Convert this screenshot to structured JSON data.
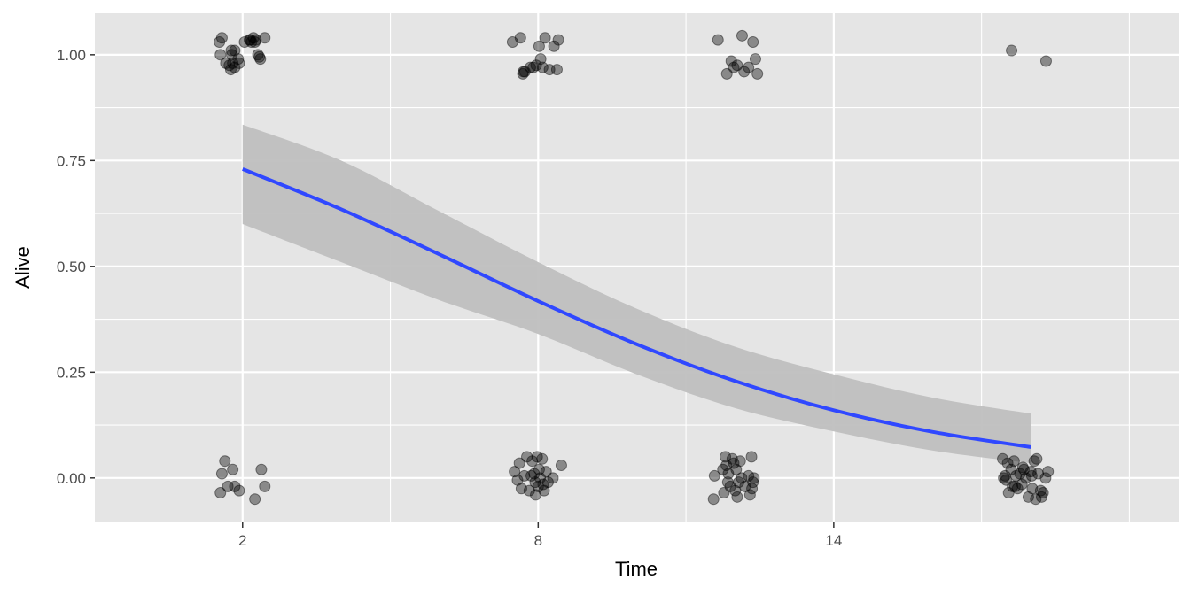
{
  "chart_data": {
    "type": "scatter",
    "title": "",
    "xlabel": "Time",
    "ylabel": "Alive",
    "xlim": [
      -1,
      21
    ],
    "ylim": [
      -0.105,
      1.098
    ],
    "x_ticks": [
      {
        "value": 2,
        "label": "2"
      },
      {
        "value": 8,
        "label": "8"
      },
      {
        "value": 14,
        "label": "14"
      }
    ],
    "x_minor": [
      5,
      11,
      17,
      20
    ],
    "y_ticks": [
      {
        "value": 0,
        "label": "0.00"
      },
      {
        "value": 0.25,
        "label": "0.25"
      },
      {
        "value": 0.5,
        "label": "0.50"
      },
      {
        "value": 0.75,
        "label": "0.75"
      },
      {
        "value": 1,
        "label": "1.00"
      }
    ],
    "y_minor": [
      0.125,
      0.375,
      0.625,
      0.875
    ],
    "grid": true,
    "colors": {
      "panel": "#e5e5e5",
      "grid": "#ffffff",
      "line": "#3048ff",
      "band": "#bfbfbf",
      "point": "#000000"
    },
    "points": [
      [
        1.53,
        1.03
      ],
      [
        1.58,
        1.04
      ],
      [
        1.55,
        1.0
      ],
      [
        1.77,
        1.01
      ],
      [
        1.8,
        0.98
      ],
      [
        1.66,
        0.98
      ],
      [
        1.84,
        0.97
      ],
      [
        1.93,
        0.98
      ],
      [
        1.78,
        1.0
      ],
      [
        1.91,
        0.99
      ],
      [
        1.73,
        0.975
      ],
      [
        2.14,
        1.035
      ],
      [
        2.18,
        1.03
      ],
      [
        2.22,
        1.04
      ],
      [
        2.31,
        1.0
      ],
      [
        2.36,
        0.99
      ],
      [
        2.45,
        1.04
      ],
      [
        2.27,
        1.035
      ],
      [
        2.04,
        1.03
      ],
      [
        2.16,
        1.035
      ],
      [
        2.25,
        1.03
      ],
      [
        2.34,
        0.995
      ],
      [
        1.84,
        1.01
      ],
      [
        1.76,
        0.965
      ],
      [
        1.55,
        -0.035
      ],
      [
        1.58,
        0.01
      ],
      [
        1.64,
        0.04
      ],
      [
        1.8,
        0.02
      ],
      [
        1.84,
        -0.02
      ],
      [
        1.93,
        -0.03
      ],
      [
        2.25,
        -0.05
      ],
      [
        2.38,
        0.02
      ],
      [
        2.45,
        -0.02
      ],
      [
        1.7,
        -0.02
      ],
      [
        7.48,
        1.03
      ],
      [
        7.64,
        1.04
      ],
      [
        7.69,
        0.955
      ],
      [
        7.73,
        0.96
      ],
      [
        7.84,
        0.97
      ],
      [
        7.96,
        0.975
      ],
      [
        8.02,
        1.02
      ],
      [
        8.05,
        0.99
      ],
      [
        8.09,
        0.97
      ],
      [
        8.14,
        1.04
      ],
      [
        8.23,
        0.965
      ],
      [
        8.32,
        1.02
      ],
      [
        8.38,
        0.965
      ],
      [
        8.41,
        1.035
      ],
      [
        7.7,
        0.96
      ],
      [
        7.9,
        0.97
      ],
      [
        7.52,
        0.015
      ],
      [
        7.58,
        -0.005
      ],
      [
        7.62,
        0.035
      ],
      [
        7.66,
        -0.025
      ],
      [
        7.72,
        0.005
      ],
      [
        7.77,
        0.05
      ],
      [
        7.82,
        -0.03
      ],
      [
        7.88,
        0.04
      ],
      [
        7.92,
        0.01
      ],
      [
        7.95,
        -0.04
      ],
      [
        7.98,
        0.05
      ],
      [
        8.0,
        -0.02
      ],
      [
        8.04,
        0.0
      ],
      [
        8.08,
        0.045
      ],
      [
        8.12,
        -0.03
      ],
      [
        8.16,
        0.015
      ],
      [
        8.2,
        -0.01
      ],
      [
        8.3,
        0.0
      ],
      [
        8.47,
        0.03
      ],
      [
        7.94,
        -0.01
      ],
      [
        8.02,
        0.02
      ],
      [
        7.86,
        0.005
      ],
      [
        8.1,
        -0.015
      ],
      [
        11.65,
        1.035
      ],
      [
        11.83,
        0.955
      ],
      [
        11.92,
        0.985
      ],
      [
        11.97,
        0.97
      ],
      [
        12.04,
        0.975
      ],
      [
        12.14,
        1.045
      ],
      [
        12.18,
        0.96
      ],
      [
        12.27,
        0.97
      ],
      [
        12.36,
        1.03
      ],
      [
        12.41,
        0.99
      ],
      [
        12.45,
        0.955
      ],
      [
        11.56,
        -0.05
      ],
      [
        11.58,
        0.005
      ],
      [
        11.75,
        0.02
      ],
      [
        11.77,
        -0.035
      ],
      [
        11.8,
        0.05
      ],
      [
        11.82,
        0.03
      ],
      [
        11.86,
        0.01
      ],
      [
        11.9,
        -0.02
      ],
      [
        11.94,
        0.045
      ],
      [
        11.97,
        0.035
      ],
      [
        12.0,
        -0.03
      ],
      [
        12.02,
        0.02
      ],
      [
        12.04,
        -0.045
      ],
      [
        12.07,
        -0.01
      ],
      [
        12.1,
        0.04
      ],
      [
        12.13,
        0.0
      ],
      [
        12.2,
        -0.02
      ],
      [
        12.27,
        0.005
      ],
      [
        12.3,
        -0.04
      ],
      [
        12.33,
        0.05
      ],
      [
        12.36,
        -0.01
      ],
      [
        12.38,
        0.0
      ],
      [
        12.34,
        -0.025
      ],
      [
        11.85,
        -0.01
      ],
      [
        17.61,
        1.01
      ],
      [
        18.31,
        0.985
      ],
      [
        17.43,
        0.045
      ],
      [
        17.45,
        0.0
      ],
      [
        17.5,
        -0.005
      ],
      [
        17.53,
        0.035
      ],
      [
        17.55,
        -0.035
      ],
      [
        17.6,
        0.02
      ],
      [
        17.63,
        -0.02
      ],
      [
        17.66,
        0.04
      ],
      [
        17.7,
        0.005
      ],
      [
        17.73,
        -0.025
      ],
      [
        17.78,
        0.01
      ],
      [
        17.82,
        -0.015
      ],
      [
        17.86,
        0.02
      ],
      [
        17.9,
        0.0
      ],
      [
        17.95,
        -0.045
      ],
      [
        18.0,
        0.015
      ],
      [
        18.03,
        -0.025
      ],
      [
        18.07,
        0.04
      ],
      [
        18.1,
        -0.05
      ],
      [
        18.12,
        0.045
      ],
      [
        18.15,
        0.01
      ],
      [
        18.2,
        -0.03
      ],
      [
        18.22,
        -0.045
      ],
      [
        18.25,
        -0.035
      ],
      [
        18.3,
        0.0
      ],
      [
        18.35,
        0.015
      ],
      [
        17.48,
        0.005
      ],
      [
        17.68,
        -0.02
      ],
      [
        17.84,
        0.025
      ],
      [
        18.02,
        0.005
      ]
    ],
    "fit": {
      "name": "logistic fit",
      "x": [
        2,
        4,
        6,
        8,
        10,
        12,
        14,
        16,
        18
      ],
      "y": [
        0.73,
        0.635,
        0.528,
        0.418,
        0.316,
        0.229,
        0.16,
        0.109,
        0.073
      ],
      "lower": [
        0.6,
        0.51,
        0.42,
        0.34,
        0.245,
        0.165,
        0.11,
        0.065,
        0.035
      ],
      "upper": [
        0.835,
        0.75,
        0.63,
        0.51,
        0.4,
        0.31,
        0.245,
        0.19,
        0.152
      ]
    }
  }
}
